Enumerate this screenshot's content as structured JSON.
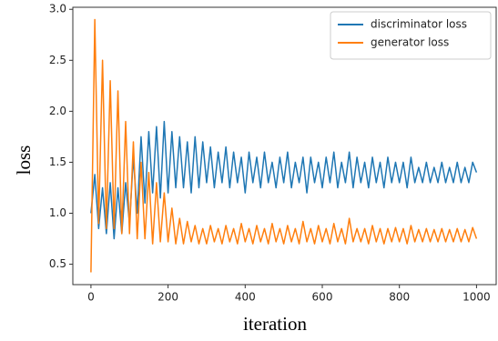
{
  "chart_data": {
    "type": "line",
    "x_label": "iteration",
    "y_label": "loss",
    "x": [
      0,
      10,
      20,
      30,
      40,
      50,
      60,
      70,
      80,
      90,
      100,
      110,
      120,
      130,
      140,
      150,
      160,
      170,
      180,
      190,
      200,
      210,
      220,
      230,
      240,
      250,
      260,
      270,
      280,
      290,
      300,
      310,
      320,
      330,
      340,
      350,
      360,
      370,
      380,
      390,
      400,
      410,
      420,
      430,
      440,
      450,
      460,
      470,
      480,
      490,
      500,
      510,
      520,
      530,
      540,
      550,
      560,
      570,
      580,
      590,
      600,
      610,
      620,
      630,
      640,
      650,
      660,
      670,
      680,
      690,
      700,
      710,
      720,
      730,
      740,
      750,
      760,
      770,
      780,
      790,
      800,
      810,
      820,
      830,
      840,
      850,
      860,
      870,
      880,
      890,
      900,
      910,
      920,
      930,
      940,
      950,
      960,
      970,
      980,
      990,
      1000
    ],
    "series": [
      {
        "name": "discriminator loss",
        "color": "#1f77b4",
        "values": [
          1.0,
          1.38,
          0.85,
          1.25,
          0.8,
          1.3,
          0.75,
          1.25,
          0.8,
          1.3,
          0.9,
          1.55,
          1.0,
          1.75,
          1.1,
          1.8,
          1.2,
          1.85,
          1.15,
          1.9,
          1.2,
          1.8,
          1.25,
          1.75,
          1.25,
          1.7,
          1.2,
          1.75,
          1.25,
          1.7,
          1.3,
          1.65,
          1.25,
          1.6,
          1.3,
          1.65,
          1.25,
          1.6,
          1.3,
          1.55,
          1.2,
          1.6,
          1.3,
          1.55,
          1.25,
          1.6,
          1.3,
          1.5,
          1.25,
          1.55,
          1.3,
          1.6,
          1.25,
          1.5,
          1.3,
          1.55,
          1.2,
          1.55,
          1.3,
          1.5,
          1.25,
          1.55,
          1.3,
          1.6,
          1.25,
          1.5,
          1.3,
          1.6,
          1.25,
          1.55,
          1.3,
          1.5,
          1.25,
          1.55,
          1.3,
          1.5,
          1.25,
          1.55,
          1.3,
          1.5,
          1.3,
          1.5,
          1.25,
          1.55,
          1.3,
          1.45,
          1.3,
          1.5,
          1.3,
          1.45,
          1.3,
          1.5,
          1.3,
          1.45,
          1.3,
          1.5,
          1.3,
          1.45,
          1.3,
          1.5,
          1.4
        ]
      },
      {
        "name": "generator loss",
        "color": "#ff7f0e",
        "values": [
          0.42,
          2.9,
          0.9,
          2.5,
          0.85,
          2.3,
          0.85,
          2.2,
          0.8,
          1.9,
          0.8,
          1.7,
          0.75,
          1.5,
          0.75,
          1.4,
          0.7,
          1.3,
          0.72,
          1.2,
          0.72,
          1.05,
          0.7,
          0.95,
          0.7,
          0.92,
          0.72,
          0.88,
          0.7,
          0.85,
          0.7,
          0.88,
          0.72,
          0.85,
          0.7,
          0.88,
          0.72,
          0.85,
          0.7,
          0.9,
          0.72,
          0.85,
          0.7,
          0.88,
          0.72,
          0.85,
          0.7,
          0.9,
          0.72,
          0.85,
          0.7,
          0.88,
          0.72,
          0.85,
          0.7,
          0.92,
          0.72,
          0.85,
          0.7,
          0.88,
          0.72,
          0.85,
          0.7,
          0.9,
          0.72,
          0.85,
          0.7,
          0.95,
          0.72,
          0.85,
          0.72,
          0.85,
          0.7,
          0.88,
          0.72,
          0.85,
          0.7,
          0.85,
          0.72,
          0.86,
          0.72,
          0.85,
          0.7,
          0.88,
          0.72,
          0.84,
          0.72,
          0.85,
          0.72,
          0.84,
          0.72,
          0.85,
          0.72,
          0.84,
          0.72,
          0.85,
          0.72,
          0.84,
          0.72,
          0.86,
          0.75
        ]
      }
    ],
    "xlim": [
      -47,
      1051
    ],
    "ylim": [
      0.3,
      3.02
    ],
    "xticks": [
      0,
      200,
      400,
      600,
      800,
      1000
    ],
    "yticks": [
      0.5,
      {
        "value": 1.0,
        "label": "1.0"
      },
      1.5,
      {
        "value": 2.0,
        "label": "2.0"
      },
      2.5,
      {
        "value": 3.0,
        "label": "3.0"
      }
    ],
    "legend": "upper right",
    "grid": false
  }
}
